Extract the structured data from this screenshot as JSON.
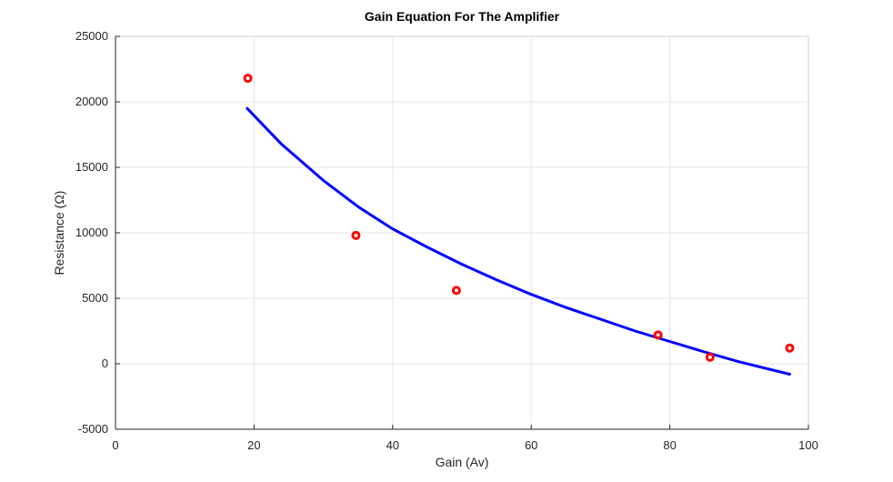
{
  "chart_data": {
    "type": "scatter",
    "title": "Gain Equation For The Amplifier",
    "xlabel": "Gain (Av)",
    "ylabel": "Resistance (Ω)",
    "xlim": [
      0,
      100
    ],
    "ylim": [
      -5000,
      25000
    ],
    "xticks": [
      0,
      20,
      40,
      60,
      80,
      100
    ],
    "yticks": [
      -5000,
      0,
      5000,
      10000,
      15000,
      20000,
      25000
    ],
    "grid": true,
    "series": [
      {
        "kind": "markers",
        "marker": "circle",
        "color": "#ff0000",
        "x": [
          19.1,
          34.7,
          49.2,
          78.3,
          85.8,
          97.3
        ],
        "y": [
          21800,
          9800,
          5600,
          2200,
          500,
          1200
        ]
      },
      {
        "kind": "line",
        "color": "#0000ff",
        "x": [
          19,
          23.9,
          30,
          35,
          40,
          45,
          50,
          55,
          60,
          65,
          70,
          75,
          80,
          85,
          90,
          97.3
        ],
        "y": [
          19500,
          16800,
          14000,
          12000,
          10300,
          8900,
          7600,
          6400,
          5300,
          4300,
          3400,
          2500,
          1700,
          900,
          150,
          -800
        ]
      }
    ]
  }
}
